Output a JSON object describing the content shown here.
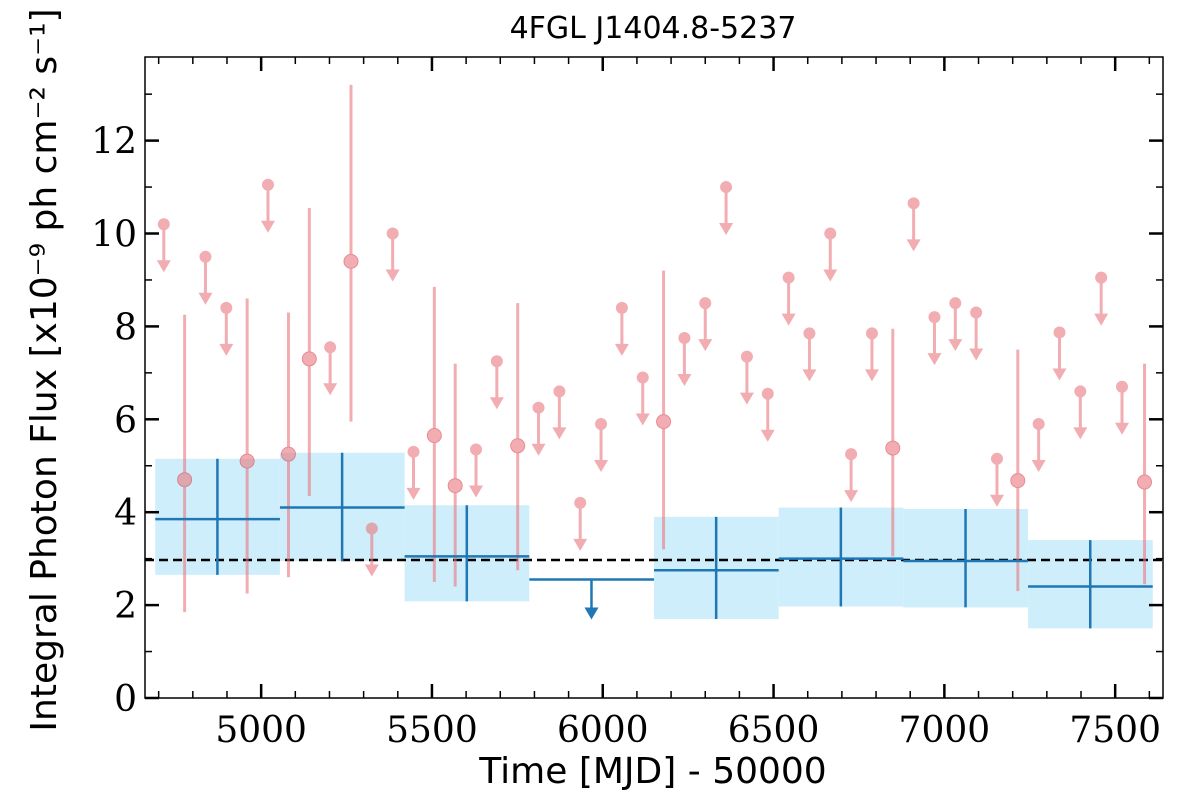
{
  "chart_data": {
    "type": "scatter",
    "title": "4FGL J1404.8-5237",
    "xlabel": "Time [MJD] - 50000",
    "ylabel": "Integral Photon Flux [x10⁻⁹ ph cm⁻² s⁻¹]",
    "xlim": [
      4660,
      7640
    ],
    "ylim": [
      0,
      13.8
    ],
    "x_ticks": [
      "5000",
      "5500",
      "6000",
      "6500",
      "7000",
      "7500"
    ],
    "y_ticks": [
      "0",
      "2",
      "4",
      "6",
      "8",
      "10",
      "12"
    ],
    "grid": false,
    "colors": {
      "short_bins": "#e8787e",
      "long_bins": "#1f77b4",
      "long_band": "#cfeefc",
      "mean_line": "#000000"
    },
    "mean_flux": 2.97,
    "long_bins": [
      {
        "x0": 4690,
        "x1": 5055,
        "x": 4872,
        "y": 3.85,
        "lo": 2.65,
        "hi": 5.15
      },
      {
        "x0": 5055,
        "x1": 5420,
        "x": 5237,
        "y": 4.1,
        "lo": 2.95,
        "hi": 5.28
      },
      {
        "x0": 5420,
        "x1": 5785,
        "x": 5602,
        "y": 3.05,
        "lo": 2.08,
        "hi": 4.15
      },
      {
        "x0": 5785,
        "x1": 6150,
        "x": 5967,
        "y": 2.55,
        "upper_limit": true
      },
      {
        "x0": 6150,
        "x1": 6515,
        "x": 6332,
        "y": 2.75,
        "lo": 1.7,
        "hi": 3.9
      },
      {
        "x0": 6515,
        "x1": 6880,
        "x": 6697,
        "y": 3.0,
        "lo": 1.97,
        "hi": 4.1
      },
      {
        "x0": 6880,
        "x1": 7245,
        "x": 7062,
        "y": 2.95,
        "lo": 1.95,
        "hi": 4.07
      },
      {
        "x0": 7245,
        "x1": 7610,
        "x": 7427,
        "y": 2.4,
        "lo": 1.5,
        "hi": 3.4
      }
    ],
    "short_bins": [
      {
        "x": 4715,
        "y": 10.2,
        "upper_limit": true
      },
      {
        "x": 4776,
        "y": 4.7,
        "lo": 1.85,
        "hi": 8.25
      },
      {
        "x": 4837,
        "y": 9.5,
        "upper_limit": true
      },
      {
        "x": 4898,
        "y": 8.4,
        "upper_limit": true
      },
      {
        "x": 4959,
        "y": 5.1,
        "lo": 2.25,
        "hi": 8.6
      },
      {
        "x": 5020,
        "y": 11.05,
        "upper_limit": true
      },
      {
        "x": 5080,
        "y": 5.25,
        "lo": 2.6,
        "hi": 8.3
      },
      {
        "x": 5141,
        "y": 7.3,
        "lo": 4.35,
        "hi": 10.55
      },
      {
        "x": 5202,
        "y": 7.55,
        "upper_limit": true
      },
      {
        "x": 5263,
        "y": 9.4,
        "lo": 5.95,
        "hi": 13.2
      },
      {
        "x": 5324,
        "y": 3.65,
        "upper_limit": true
      },
      {
        "x": 5385,
        "y": 10.0,
        "upper_limit": true
      },
      {
        "x": 5446,
        "y": 5.3,
        "upper_limit": true
      },
      {
        "x": 5507,
        "y": 5.65,
        "lo": 2.5,
        "hi": 8.85
      },
      {
        "x": 5568,
        "y": 4.57,
        "lo": 2.4,
        "hi": 7.2
      },
      {
        "x": 5629,
        "y": 5.35,
        "upper_limit": true
      },
      {
        "x": 5690,
        "y": 7.25,
        "upper_limit": true
      },
      {
        "x": 5751,
        "y": 5.43,
        "lo": 2.75,
        "hi": 8.5
      },
      {
        "x": 5812,
        "y": 6.25,
        "upper_limit": true
      },
      {
        "x": 5873,
        "y": 6.6,
        "upper_limit": true
      },
      {
        "x": 5934,
        "y": 4.2,
        "upper_limit": true
      },
      {
        "x": 5995,
        "y": 5.9,
        "upper_limit": true
      },
      {
        "x": 6056,
        "y": 8.4,
        "upper_limit": true
      },
      {
        "x": 6117,
        "y": 6.9,
        "upper_limit": true
      },
      {
        "x": 6178,
        "y": 5.95,
        "lo": 3.2,
        "hi": 9.2
      },
      {
        "x": 6239,
        "y": 7.75,
        "upper_limit": true
      },
      {
        "x": 6300,
        "y": 8.5,
        "upper_limit": true
      },
      {
        "x": 6361,
        "y": 11.0,
        "upper_limit": true
      },
      {
        "x": 6422,
        "y": 7.35,
        "upper_limit": true
      },
      {
        "x": 6483,
        "y": 6.55,
        "upper_limit": true
      },
      {
        "x": 6544,
        "y": 9.05,
        "upper_limit": true
      },
      {
        "x": 6605,
        "y": 7.85,
        "upper_limit": true
      },
      {
        "x": 6666,
        "y": 10.0,
        "upper_limit": true
      },
      {
        "x": 6727,
        "y": 5.25,
        "upper_limit": true
      },
      {
        "x": 6788,
        "y": 7.85,
        "upper_limit": true
      },
      {
        "x": 6849,
        "y": 5.38,
        "lo": 3.05,
        "hi": 7.95
      },
      {
        "x": 6910,
        "y": 10.65,
        "upper_limit": true
      },
      {
        "x": 6971,
        "y": 8.2,
        "upper_limit": true
      },
      {
        "x": 7032,
        "y": 8.5,
        "upper_limit": true
      },
      {
        "x": 7093,
        "y": 8.3,
        "upper_limit": true
      },
      {
        "x": 7154,
        "y": 5.15,
        "upper_limit": true
      },
      {
        "x": 7215,
        "y": 4.68,
        "lo": 2.3,
        "hi": 7.5
      },
      {
        "x": 7276,
        "y": 5.9,
        "upper_limit": true
      },
      {
        "x": 7337,
        "y": 7.87,
        "upper_limit": true
      },
      {
        "x": 7398,
        "y": 6.6,
        "upper_limit": true
      },
      {
        "x": 7459,
        "y": 9.05,
        "upper_limit": true
      },
      {
        "x": 7520,
        "y": 6.7,
        "upper_limit": true
      },
      {
        "x": 7586,
        "y": 4.65,
        "lo": 2.45,
        "hi": 7.2
      }
    ]
  }
}
